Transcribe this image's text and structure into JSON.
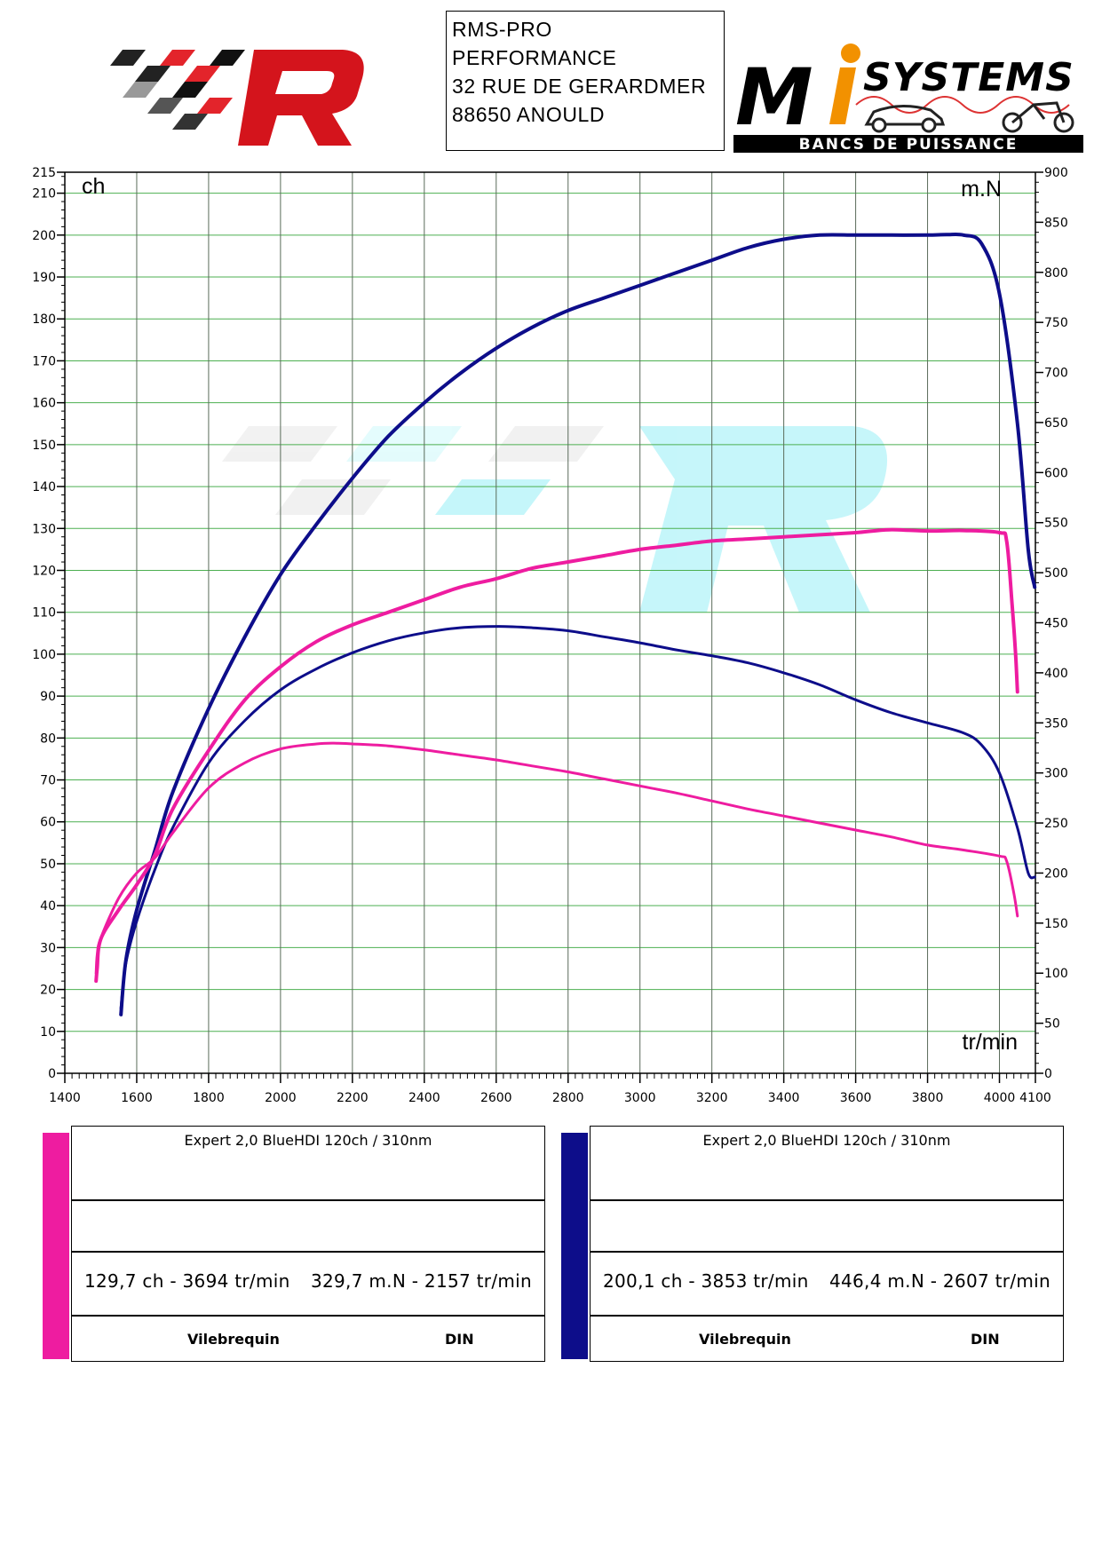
{
  "header": {
    "address_lines": [
      "RMS-PRO",
      "PERFORMANCE",
      "32 RUE DE GERARDMER",
      "88650 ANOULD"
    ],
    "right_logo_text": "MiSYSTEMS",
    "right_logo_tagline": "BANCS DE PUISSANCE"
  },
  "colors": {
    "pink": "#ee1ca0",
    "blue": "#0d0d8a",
    "grid": "#4caf50"
  },
  "chart_data": {
    "type": "line",
    "left_unit": "ch",
    "right_unit": "m.N",
    "x_unit": "tr/min",
    "xlim": [
      1400,
      4100
    ],
    "ylim_left": [
      0,
      215
    ],
    "ylim_right": [
      0,
      900
    ],
    "x_ticks": [
      1400,
      1600,
      1800,
      2000,
      2200,
      2400,
      2600,
      2800,
      3000,
      3200,
      3400,
      3600,
      3800,
      4000,
      4100
    ],
    "y_left_ticks": [
      0,
      10,
      20,
      30,
      40,
      50,
      60,
      70,
      80,
      90,
      100,
      110,
      120,
      130,
      140,
      150,
      160,
      170,
      180,
      190,
      200,
      210,
      215
    ],
    "y_right_ticks": [
      0,
      50,
      100,
      150,
      200,
      250,
      300,
      350,
      400,
      450,
      500,
      550,
      600,
      650,
      700,
      750,
      800,
      850,
      900
    ],
    "series": [
      {
        "color": "#0d0d8a",
        "axis": "left",
        "width": 4,
        "x": [
          1556,
          1570,
          1600,
          1650,
          1700,
          1800,
          1900,
          2000,
          2100,
          2200,
          2300,
          2400,
          2500,
          2600,
          2700,
          2800,
          2900,
          3000,
          3100,
          3200,
          3300,
          3400,
          3500,
          3600,
          3700,
          3800,
          3853,
          3900,
          3950,
          4000,
          4050,
          4080,
          4098
        ],
        "y": [
          14,
          27,
          39,
          53,
          67,
          87,
          104,
          119,
          131,
          142,
          152,
          160,
          167,
          173,
          178,
          182,
          185,
          188,
          191,
          194,
          197,
          199,
          200,
          200,
          200,
          200,
          200.1,
          200,
          198,
          186,
          155,
          125,
          116
        ]
      },
      {
        "color": "#0d0d8a",
        "axis": "right",
        "width": 3,
        "x": [
          1556,
          1570,
          1600,
          1650,
          1700,
          1800,
          1900,
          2000,
          2100,
          2200,
          2300,
          2400,
          2500,
          2607,
          2700,
          2800,
          2900,
          3000,
          3100,
          3200,
          3300,
          3400,
          3500,
          3600,
          3700,
          3800,
          3900,
          3950,
          4000,
          4050,
          4080,
          4098
        ],
        "y": [
          65,
          110,
          152,
          203,
          245,
          310,
          352,
          383,
          404,
          420,
          432,
          440,
          445,
          446.4,
          445,
          442,
          436,
          430,
          423,
          417,
          410,
          400,
          388,
          373,
          360,
          350,
          340,
          328,
          300,
          245,
          200,
          196
        ]
      },
      {
        "color": "#ee1ca0",
        "axis": "left",
        "width": 4,
        "x": [
          1487,
          1490,
          1500,
          1550,
          1600,
          1650,
          1700,
          1800,
          1900,
          2000,
          2100,
          2200,
          2300,
          2400,
          2500,
          2600,
          2700,
          2800,
          2900,
          3000,
          3100,
          3200,
          3300,
          3400,
          3500,
          3600,
          3694,
          3800,
          3900,
          4000,
          4020,
          4035,
          4045,
          4050
        ],
        "y": [
          22,
          25,
          32,
          39,
          45,
          52,
          63,
          77,
          89,
          97,
          103,
          107,
          110,
          113,
          116,
          118,
          120.5,
          122,
          123.5,
          125,
          126,
          127,
          127.5,
          128,
          128.5,
          129,
          129.7,
          129.4,
          129.5,
          129,
          127,
          112,
          100,
          91
        ]
      },
      {
        "color": "#ee1ca0",
        "axis": "right",
        "width": 3,
        "x": [
          1487,
          1490,
          1500,
          1550,
          1600,
          1650,
          1700,
          1800,
          1900,
          2000,
          2100,
          2157,
          2200,
          2300,
          2400,
          2500,
          2600,
          2700,
          2800,
          2900,
          3000,
          3100,
          3200,
          3300,
          3400,
          3500,
          3600,
          3700,
          3800,
          3900,
          4000,
          4020,
          4040,
          4050
        ],
        "y": [
          100,
          118,
          135,
          175,
          200,
          215,
          240,
          285,
          310,
          324,
          329,
          329.7,
          329,
          327,
          323,
          318,
          313,
          307,
          301,
          294,
          287,
          280,
          272,
          264,
          257,
          250,
          243,
          236,
          228,
          223,
          217,
          212,
          180,
          157
        ]
      }
    ]
  },
  "panels": [
    {
      "color": "#ee1ca0",
      "vehicle": "Expert 2,0 BlueHDI 120ch / 310nm",
      "power": "129,7 ch - 3694 tr/min",
      "torque": "329,7 m.N - 2157 tr/min",
      "mode": "Vilebrequin",
      "standard": "DIN"
    },
    {
      "color": "#0d0d8a",
      "vehicle": "Expert 2,0 BlueHDI 120ch / 310nm",
      "power": "200,1 ch - 3853 tr/min",
      "torque": "446,4 m.N - 2607 tr/min",
      "mode": "Vilebrequin",
      "standard": "DIN"
    }
  ]
}
